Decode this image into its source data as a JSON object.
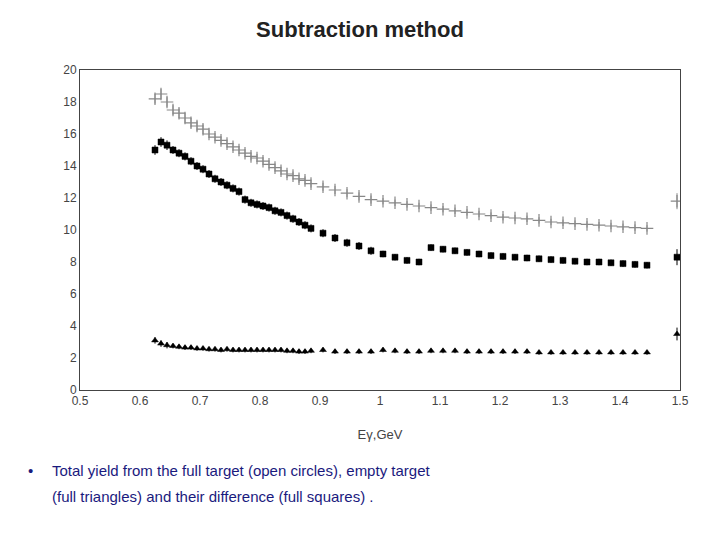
{
  "chart_data": {
    "type": "scatter",
    "title": "Subtraction method",
    "xlabel": "Eγ,GeV",
    "annotations": [
      "•",
      "Total yield from the full target (open circles), empty target",
      "(full triangles) and their difference (full squares) ."
    ],
    "xlim": [
      0.5,
      1.5
    ],
    "ylim": [
      0,
      20
    ],
    "xticks": [
      0.5,
      0.6,
      0.7,
      0.8,
      0.9,
      1.0,
      1.1,
      1.2,
      1.3,
      1.4,
      1.5
    ],
    "yticks": [
      0,
      2,
      4,
      6,
      8,
      10,
      12,
      14,
      16,
      18,
      20
    ],
    "grid": false,
    "x": [
      0.625,
      0.635,
      0.645,
      0.655,
      0.665,
      0.675,
      0.685,
      0.695,
      0.705,
      0.715,
      0.725,
      0.735,
      0.745,
      0.755,
      0.765,
      0.775,
      0.785,
      0.795,
      0.805,
      0.815,
      0.825,
      0.835,
      0.845,
      0.855,
      0.865,
      0.875,
      0.885,
      0.905,
      0.925,
      0.945,
      0.965,
      0.985,
      1.005,
      1.025,
      1.045,
      1.065,
      1.085,
      1.105,
      1.125,
      1.145,
      1.165,
      1.185,
      1.205,
      1.225,
      1.245,
      1.265,
      1.285,
      1.305,
      1.325,
      1.345,
      1.365,
      1.385,
      1.405,
      1.425,
      1.445,
      1.495
    ],
    "series": [
      {
        "color": "#888888",
        "marker": "plus",
        "values": [
          18.2,
          18.5,
          18.0,
          17.5,
          17.3,
          17.0,
          16.7,
          16.5,
          16.3,
          16.0,
          15.8,
          15.6,
          15.4,
          15.2,
          15.0,
          14.8,
          14.6,
          14.5,
          14.3,
          14.1,
          13.9,
          13.7,
          13.5,
          13.4,
          13.2,
          13.1,
          12.9,
          12.7,
          12.5,
          12.3,
          12.1,
          11.9,
          11.8,
          11.7,
          11.6,
          11.5,
          11.4,
          11.3,
          11.2,
          11.1,
          11.0,
          10.9,
          10.8,
          10.75,
          10.7,
          10.6,
          10.5,
          10.45,
          10.4,
          10.35,
          10.3,
          10.25,
          10.2,
          10.15,
          10.1,
          11.8
        ],
        "yerr": [
          0.3,
          0.3,
          0.3,
          0.3,
          0.3,
          0.3,
          0.3,
          0.3,
          0.3,
          0.25,
          0.25,
          0.25,
          0.25,
          0.25,
          0.25,
          0.25,
          0.25,
          0.25,
          0.25,
          0.25,
          0.25,
          0.25,
          0.25,
          0.25,
          0.25,
          0.25,
          0.25,
          0.25,
          0.25,
          0.25,
          0.25,
          0.25,
          0.2,
          0.2,
          0.2,
          0.2,
          0.2,
          0.2,
          0.2,
          0.2,
          0.2,
          0.2,
          0.2,
          0.2,
          0.2,
          0.2,
          0.2,
          0.2,
          0.2,
          0.2,
          0.2,
          0.2,
          0.2,
          0.2,
          0.2,
          0.5
        ]
      },
      {
        "color": "#000000",
        "marker": "square",
        "values": [
          15.0,
          15.5,
          15.3,
          15.0,
          14.8,
          14.6,
          14.3,
          14.0,
          13.8,
          13.5,
          13.2,
          13.0,
          12.8,
          12.6,
          12.4,
          11.9,
          11.7,
          11.6,
          11.5,
          11.4,
          11.2,
          11.1,
          10.9,
          10.7,
          10.5,
          10.3,
          10.1,
          9.8,
          9.5,
          9.2,
          9.0,
          8.7,
          8.5,
          8.3,
          8.1,
          8.0,
          8.9,
          8.8,
          8.7,
          8.6,
          8.5,
          8.4,
          8.35,
          8.3,
          8.25,
          8.2,
          8.15,
          8.1,
          8.05,
          8.0,
          8.0,
          7.95,
          7.9,
          7.85,
          7.8,
          8.3
        ],
        "yerr": [
          0.3,
          0.3,
          0.3,
          0.25,
          0.25,
          0.25,
          0.25,
          0.25,
          0.25,
          0.25,
          0.25,
          0.25,
          0.25,
          0.25,
          0.25,
          0.25,
          0.25,
          0.25,
          0.25,
          0.25,
          0.25,
          0.25,
          0.25,
          0.25,
          0.25,
          0.25,
          0.25,
          0.25,
          0.25,
          0.25,
          0.25,
          0.25,
          0.2,
          0.2,
          0.2,
          0.2,
          0.2,
          0.2,
          0.2,
          0.2,
          0.2,
          0.2,
          0.2,
          0.2,
          0.2,
          0.2,
          0.2,
          0.2,
          0.2,
          0.2,
          0.2,
          0.2,
          0.2,
          0.2,
          0.2,
          0.5
        ]
      },
      {
        "color": "#000000",
        "marker": "triangle",
        "values": [
          3.1,
          2.9,
          2.8,
          2.75,
          2.7,
          2.65,
          2.65,
          2.6,
          2.6,
          2.55,
          2.55,
          2.5,
          2.55,
          2.5,
          2.5,
          2.5,
          2.5,
          2.5,
          2.5,
          2.5,
          2.5,
          2.5,
          2.45,
          2.45,
          2.4,
          2.4,
          2.45,
          2.5,
          2.4,
          2.4,
          2.4,
          2.4,
          2.5,
          2.45,
          2.4,
          2.4,
          2.45,
          2.45,
          2.45,
          2.4,
          2.4,
          2.4,
          2.4,
          2.4,
          2.4,
          2.35,
          2.35,
          2.35,
          2.35,
          2.35,
          2.35,
          2.35,
          2.35,
          2.35,
          2.35,
          3.5
        ],
        "yerr": [
          0.2,
          0.2,
          0.2,
          0.15,
          0.15,
          0.15,
          0.15,
          0.15,
          0.15,
          0.15,
          0.15,
          0.15,
          0.15,
          0.15,
          0.15,
          0.15,
          0.15,
          0.15,
          0.15,
          0.15,
          0.15,
          0.15,
          0.15,
          0.15,
          0.15,
          0.15,
          0.15,
          0.15,
          0.15,
          0.15,
          0.15,
          0.15,
          0.15,
          0.15,
          0.15,
          0.15,
          0.15,
          0.15,
          0.15,
          0.15,
          0.15,
          0.15,
          0.15,
          0.15,
          0.15,
          0.15,
          0.15,
          0.15,
          0.15,
          0.15,
          0.15,
          0.15,
          0.15,
          0.15,
          0.15,
          0.4
        ]
      }
    ]
  }
}
